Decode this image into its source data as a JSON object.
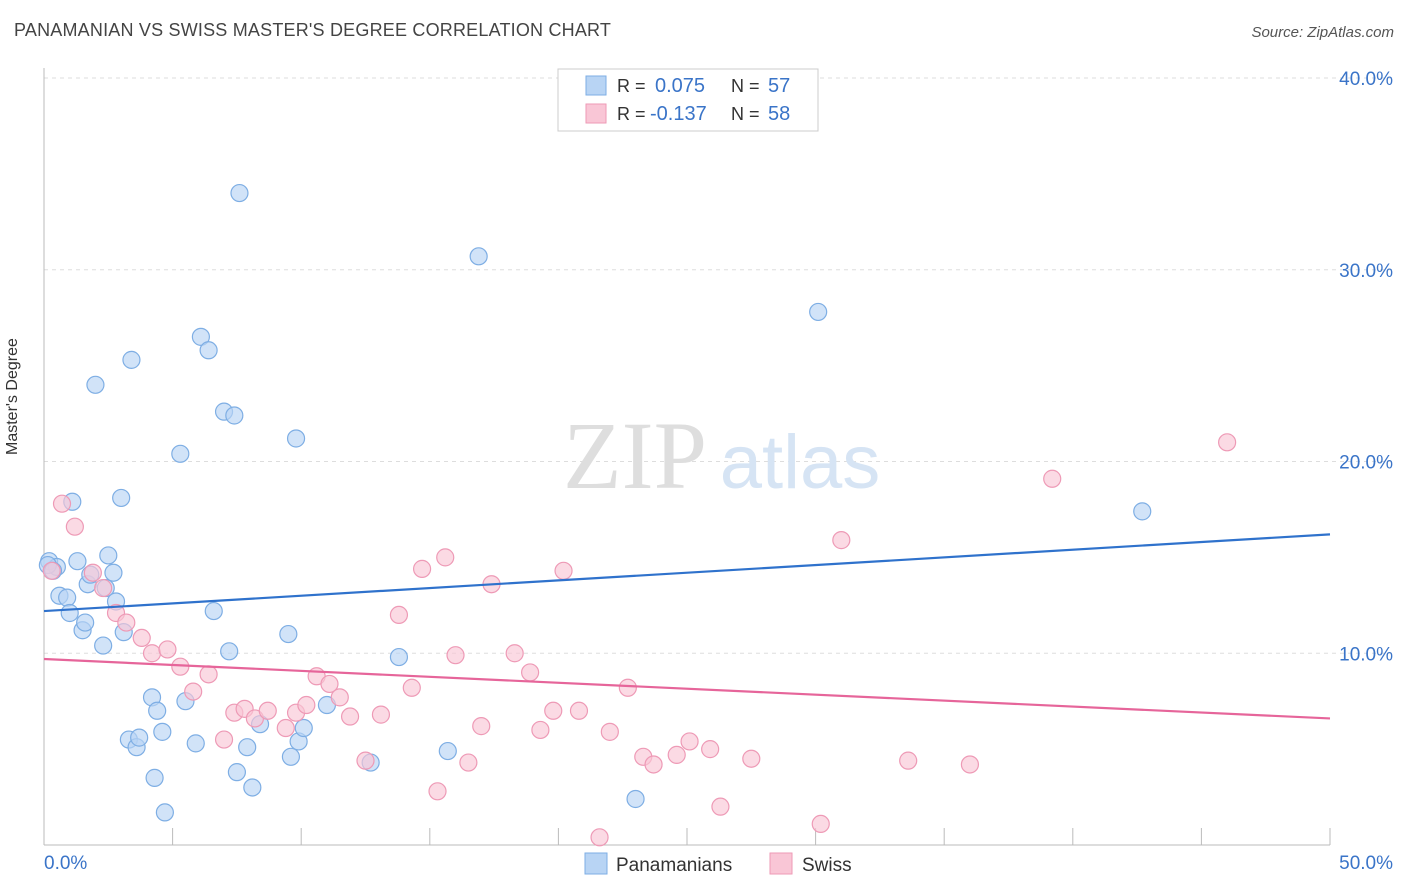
{
  "title": "PANAMANIAN VS SWISS MASTER'S DEGREE CORRELATION CHART",
  "source": "Source: ZipAtlas.com",
  "colors": {
    "blue_fill": "#b8d4f4",
    "blue_stroke": "#7eaee4",
    "blue_line": "#2f72cc",
    "pink_fill": "#f9c6d6",
    "pink_stroke": "#ee9ab6",
    "pink_line": "#e6659a",
    "axis_label": "#3a74c8",
    "grid": "#dddddd"
  },
  "watermark": {
    "zip": "ZIP",
    "atlas": "atlas"
  },
  "chart_data": {
    "type": "scatter",
    "title": "PANAMANIAN VS SWISS MASTER'S DEGREE CORRELATION CHART",
    "xlabel": "",
    "ylabel": "Master's Degree",
    "xlim": [
      0,
      50
    ],
    "ylim": [
      0,
      40
    ],
    "x_tick_labels": [
      "0.0%",
      "50.0%"
    ],
    "y_ticks": [
      10,
      20,
      30,
      40
    ],
    "y_tick_labels": [
      "10.0%",
      "20.0%",
      "30.0%",
      "40.0%"
    ],
    "legend": [
      {
        "r_label": "R =",
        "r_value": "0.075",
        "n_label": "N =",
        "n_value": "57"
      },
      {
        "r_label": "R =",
        "r_value": "-0.137",
        "n_label": "N =",
        "n_value": "58"
      }
    ],
    "series": [
      {
        "name": "Panamanians",
        "trend": [
          [
            0,
            12.2
          ],
          [
            50,
            16.2
          ]
        ],
        "points": [
          [
            0.2,
            14.8
          ],
          [
            0.5,
            14.5
          ],
          [
            0.6,
            13.0
          ],
          [
            0.9,
            12.9
          ],
          [
            1.0,
            12.1
          ],
          [
            1.1,
            17.9
          ],
          [
            1.3,
            14.8
          ],
          [
            1.5,
            11.2
          ],
          [
            1.6,
            11.6
          ],
          [
            1.7,
            13.6
          ],
          [
            1.8,
            14.1
          ],
          [
            2.0,
            24.0
          ],
          [
            2.3,
            10.4
          ],
          [
            2.4,
            13.4
          ],
          [
            2.5,
            15.1
          ],
          [
            2.7,
            14.2
          ],
          [
            2.8,
            12.7
          ],
          [
            3.0,
            18.1
          ],
          [
            3.1,
            11.1
          ],
          [
            3.4,
            25.3
          ],
          [
            3.3,
            5.5
          ],
          [
            3.6,
            5.1
          ],
          [
            3.7,
            5.6
          ],
          [
            4.2,
            7.7
          ],
          [
            4.3,
            3.5
          ],
          [
            4.4,
            7.0
          ],
          [
            4.6,
            5.9
          ],
          [
            4.7,
            1.7
          ],
          [
            5.3,
            20.4
          ],
          [
            5.5,
            7.5
          ],
          [
            5.9,
            5.3
          ],
          [
            6.1,
            26.5
          ],
          [
            6.4,
            25.8
          ],
          [
            6.6,
            12.2
          ],
          [
            7.0,
            22.6
          ],
          [
            7.2,
            10.1
          ],
          [
            7.4,
            22.4
          ],
          [
            7.5,
            3.8
          ],
          [
            7.6,
            34.0
          ],
          [
            7.9,
            5.1
          ],
          [
            8.1,
            3.0
          ],
          [
            8.4,
            6.3
          ],
          [
            9.5,
            11.0
          ],
          [
            9.6,
            4.6
          ],
          [
            9.8,
            21.2
          ],
          [
            9.9,
            5.4
          ],
          [
            10.1,
            6.1
          ],
          [
            11.0,
            7.3
          ],
          [
            12.7,
            4.3
          ],
          [
            13.8,
            9.8
          ],
          [
            15.7,
            4.9
          ],
          [
            16.9,
            30.7
          ],
          [
            23.0,
            2.4
          ],
          [
            30.1,
            27.8
          ],
          [
            42.7,
            17.4
          ],
          [
            0.15,
            14.6
          ],
          [
            0.35,
            14.3
          ]
        ]
      },
      {
        "name": "Swiss",
        "trend": [
          [
            0,
            9.7
          ],
          [
            50,
            6.6
          ]
        ],
        "points": [
          [
            0.3,
            14.3
          ],
          [
            0.7,
            17.8
          ],
          [
            1.2,
            16.6
          ],
          [
            1.9,
            14.2
          ],
          [
            2.3,
            13.4
          ],
          [
            2.8,
            12.1
          ],
          [
            3.2,
            11.6
          ],
          [
            3.8,
            10.8
          ],
          [
            4.2,
            10.0
          ],
          [
            4.8,
            10.2
          ],
          [
            5.3,
            9.3
          ],
          [
            5.8,
            8.0
          ],
          [
            6.4,
            8.9
          ],
          [
            7.0,
            5.5
          ],
          [
            7.4,
            6.9
          ],
          [
            7.8,
            7.1
          ],
          [
            8.2,
            6.6
          ],
          [
            8.7,
            7.0
          ],
          [
            9.4,
            6.1
          ],
          [
            9.8,
            6.9
          ],
          [
            10.2,
            7.3
          ],
          [
            10.6,
            8.8
          ],
          [
            11.1,
            8.4
          ],
          [
            11.5,
            7.7
          ],
          [
            11.9,
            6.7
          ],
          [
            12.5,
            4.4
          ],
          [
            13.1,
            6.8
          ],
          [
            13.8,
            12.0
          ],
          [
            14.3,
            8.2
          ],
          [
            14.7,
            14.4
          ],
          [
            15.3,
            2.8
          ],
          [
            15.6,
            15.0
          ],
          [
            16.0,
            9.9
          ],
          [
            16.5,
            4.3
          ],
          [
            17.0,
            6.2
          ],
          [
            17.4,
            13.6
          ],
          [
            18.3,
            10.0
          ],
          [
            18.9,
            9.0
          ],
          [
            19.3,
            6.0
          ],
          [
            19.8,
            7.0
          ],
          [
            20.2,
            14.3
          ],
          [
            20.8,
            7.0
          ],
          [
            21.6,
            0.4
          ],
          [
            22.0,
            5.9
          ],
          [
            22.7,
            8.2
          ],
          [
            23.3,
            4.6
          ],
          [
            23.7,
            4.2
          ],
          [
            24.6,
            4.7
          ],
          [
            25.1,
            5.4
          ],
          [
            25.9,
            5.0
          ],
          [
            26.3,
            2.0
          ],
          [
            27.5,
            4.5
          ],
          [
            30.2,
            1.1
          ],
          [
            31.0,
            15.9
          ],
          [
            33.6,
            4.4
          ],
          [
            36.0,
            4.2
          ],
          [
            39.2,
            19.1
          ],
          [
            46.0,
            21.0
          ]
        ]
      }
    ]
  },
  "bottom_legend": [
    {
      "label": "Panamanians"
    },
    {
      "label": "Swiss"
    }
  ]
}
